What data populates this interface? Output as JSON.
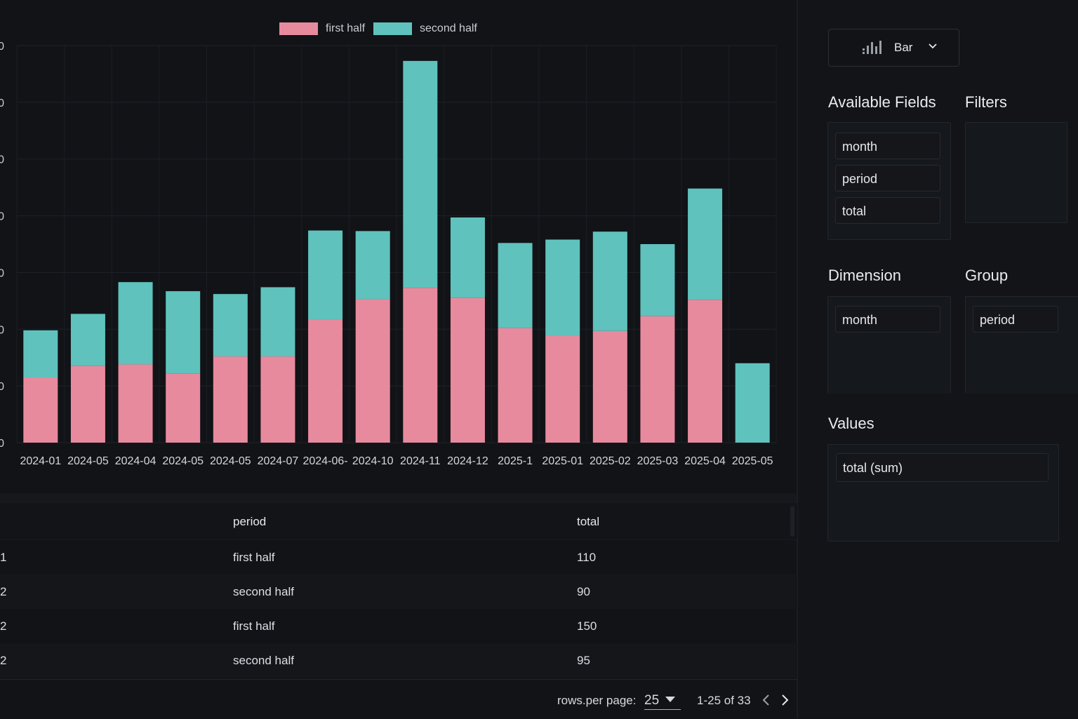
{
  "chart_data": {
    "type": "bar",
    "stacked": true,
    "categories": [
      "2024-01",
      "2024-05",
      "2024-04",
      "2024-05",
      "2024-05",
      "2024-07",
      "2024-06-",
      "2024-10",
      "2024-11",
      "2024-12",
      "2025-1",
      "2025-01",
      "2025-02",
      "2025-03",
      "2025-04",
      "2025-05"
    ],
    "series": [
      {
        "name": "first half",
        "color": "#e88a9d",
        "values": [
          115,
          135,
          138,
          122,
          152,
          152,
          217,
          253,
          273,
          255,
          202,
          188,
          197,
          223,
          252,
          0
        ]
      },
      {
        "name": "second half",
        "color": "#5fc2bd",
        "values": [
          83,
          92,
          145,
          145,
          110,
          122,
          157,
          120,
          400,
          142,
          150,
          170,
          175,
          127,
          196,
          140
        ]
      }
    ],
    "y_ticks": [
      "0",
      "0",
      "0",
      "0",
      "0",
      "0",
      "0",
      "0"
    ],
    "ylim": [
      0,
      700
    ],
    "legend_position": "top-center",
    "grid": true
  },
  "legend": {
    "items": [
      "first half",
      "second half"
    ]
  },
  "table": {
    "columns": [
      "",
      "period",
      "total"
    ],
    "rows": [
      [
        "1",
        "first half",
        "110"
      ],
      [
        "2",
        "second half",
        "90"
      ],
      [
        "2",
        "first half",
        "150"
      ],
      [
        "2",
        "second half",
        "95"
      ]
    ]
  },
  "pagination": {
    "rows_per_page_label": "rows.per page:",
    "rows_per_page": "25",
    "range": "1-25 of 33"
  },
  "sidebar": {
    "chart_type": "Bar",
    "available_fields_title": "Available Fields",
    "available_fields": [
      "month",
      "period",
      "total"
    ],
    "filters_title": "Filters",
    "dimension_title": "Dimension",
    "dimension_field": "month",
    "group_title": "Group",
    "group_field": "period",
    "values_title": "Values",
    "values_field": "total (sum)"
  }
}
